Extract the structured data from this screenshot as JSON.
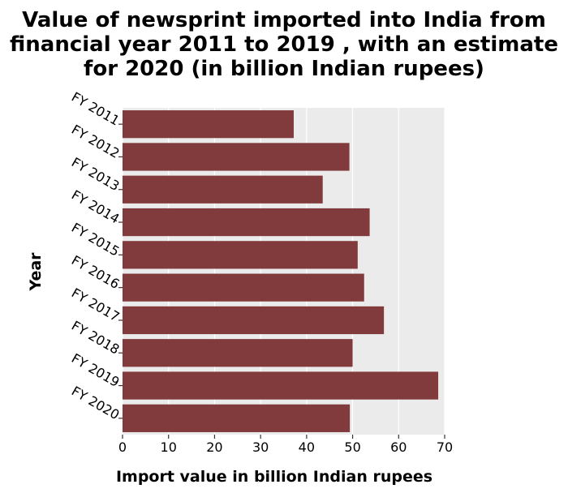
{
  "chart_data": {
    "type": "bar",
    "orientation": "horizontal",
    "title": "Value of newsprint imported into India from financial year 2011 to 2019 , with an estimate for 2020 (in billion Indian rupees)",
    "title_lines": [
      "Value of newsprint imported into India from",
      "financial year 2011 to 2019 , with an estimate",
      "for 2020 (in billion Indian rupees)"
    ],
    "xlabel": "Import value in billion Indian rupees",
    "ylabel": "Year",
    "categories": [
      "FY 2011",
      "FY 2012",
      "FY 2013",
      "FY 2014",
      "FY 2015",
      "FY 2016",
      "FY 2017",
      "FY 2018",
      "FY 2019",
      "FY 2020"
    ],
    "values": [
      37.2,
      49.3,
      43.5,
      53.7,
      51.1,
      52.5,
      56.8,
      50.0,
      68.6,
      49.4
    ],
    "xlim": [
      0,
      70
    ],
    "xticks": [
      0,
      10,
      20,
      30,
      40,
      50,
      60,
      70
    ],
    "grid": true,
    "legend": "none",
    "bar_color": "#813b3c",
    "plot_background": "#ebebeb",
    "grid_color": "#ffffff"
  }
}
